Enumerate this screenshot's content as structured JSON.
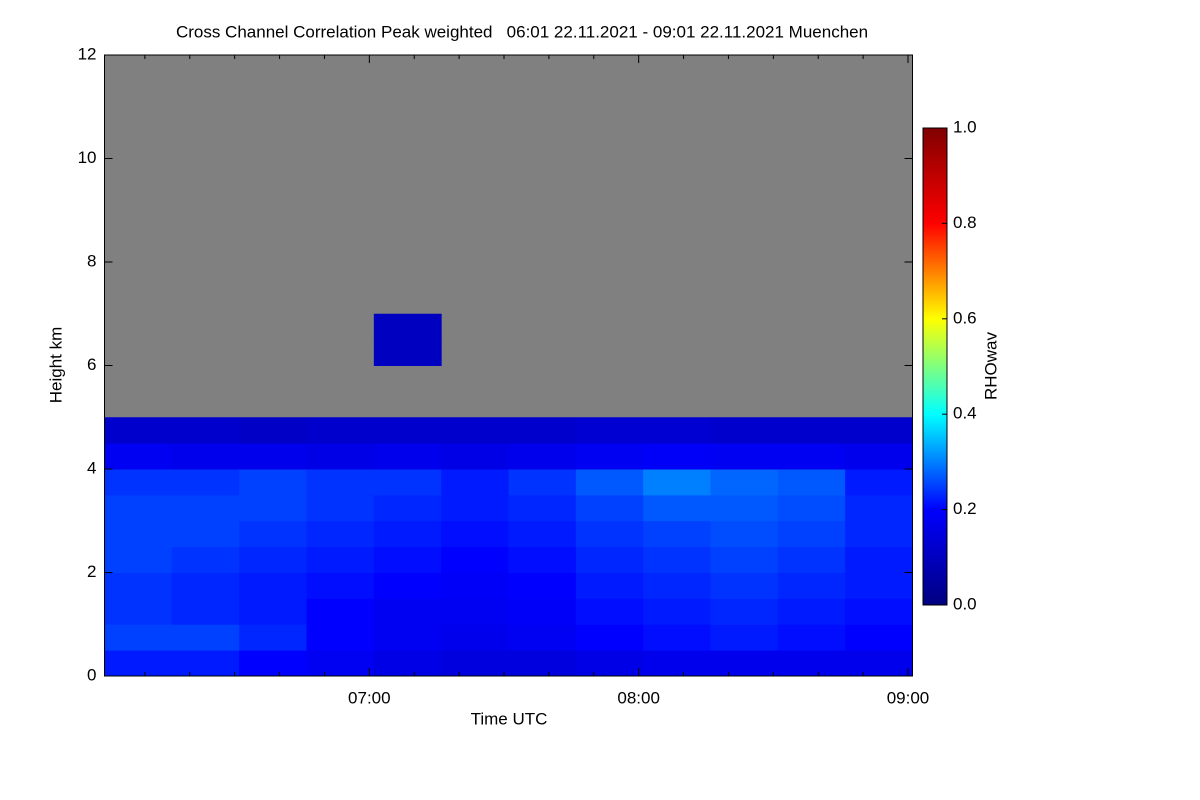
{
  "chart_data": {
    "type": "heatmap",
    "title": "Cross Channel Correlation Peak weighted   06:01 22.11.2021 - 09:01 22.11.2021 Muenchen",
    "x_label": "Time UTC",
    "y_label": "Height km",
    "colorbar_label": "RHOwav",
    "xlim": [
      6.0167,
      9.0167
    ],
    "xticks": [
      {
        "value": 7,
        "label": "07:00"
      },
      {
        "value": 8,
        "label": "08:00"
      },
      {
        "value": 9,
        "label": "09:00"
      }
    ],
    "xminorticks": [
      6.1667,
      6.3333,
      6.5,
      6.6667,
      6.8333,
      7.1667,
      7.3333,
      7.5,
      7.6667,
      7.8333,
      8.1667,
      8.3333,
      8.5,
      8.6667,
      8.8333
    ],
    "ylim": [
      0,
      12
    ],
    "yticks": [
      0,
      2,
      4,
      6,
      8,
      10,
      12
    ],
    "x_edges": [
      6.0167,
      6.2667,
      6.5167,
      6.7667,
      7.0167,
      7.2667,
      7.5167,
      7.7667,
      8.0167,
      8.2667,
      8.5167,
      8.7667,
      9.0167
    ],
    "y_edges": [
      0,
      0.5,
      1,
      1.5,
      2,
      2.5,
      3,
      3.5,
      4,
      4.5,
      5,
      5.5,
      6,
      6.5,
      7
    ],
    "z": [
      [
        0.22,
        0.22,
        0.2,
        0.18,
        0.16,
        0.15,
        0.15,
        0.16,
        0.17,
        0.17,
        0.17,
        0.17
      ],
      [
        0.25,
        0.25,
        0.23,
        0.2,
        0.18,
        0.17,
        0.18,
        0.2,
        0.21,
        0.22,
        0.21,
        0.2
      ],
      [
        0.24,
        0.23,
        0.22,
        0.2,
        0.18,
        0.18,
        0.19,
        0.21,
        0.22,
        0.23,
        0.22,
        0.21
      ],
      [
        0.24,
        0.23,
        0.22,
        0.21,
        0.2,
        0.19,
        0.2,
        0.22,
        0.23,
        0.24,
        0.23,
        0.22
      ],
      [
        0.25,
        0.24,
        0.23,
        0.22,
        0.21,
        0.2,
        0.21,
        0.23,
        0.24,
        0.25,
        0.24,
        0.22
      ],
      [
        0.25,
        0.25,
        0.24,
        0.23,
        0.22,
        0.21,
        0.22,
        0.24,
        0.25,
        0.26,
        0.25,
        0.23
      ],
      [
        0.25,
        0.25,
        0.25,
        0.24,
        0.23,
        0.22,
        0.23,
        0.25,
        0.27,
        0.27,
        0.26,
        0.23
      ],
      [
        0.24,
        0.24,
        0.25,
        0.24,
        0.24,
        0.22,
        0.24,
        0.27,
        0.3,
        0.28,
        0.27,
        0.22
      ],
      [
        0.18,
        0.17,
        0.17,
        0.16,
        0.17,
        0.16,
        0.17,
        0.18,
        0.19,
        0.18,
        0.18,
        0.17
      ],
      [
        0.12,
        0.12,
        0.11,
        0.12,
        0.12,
        0.12,
        0.12,
        0.13,
        0.13,
        0.12,
        0.12,
        0.12
      ],
      [
        null,
        null,
        null,
        null,
        null,
        null,
        null,
        null,
        null,
        null,
        null,
        null
      ],
      [
        null,
        null,
        null,
        null,
        null,
        null,
        null,
        null,
        null,
        null,
        null,
        null
      ],
      [
        null,
        null,
        null,
        null,
        0.1,
        null,
        null,
        null,
        null,
        null,
        null,
        null
      ],
      [
        null,
        null,
        null,
        null,
        0.1,
        null,
        null,
        null,
        null,
        null,
        null,
        null
      ]
    ],
    "missing_color": "#808080",
    "colormap": [
      "#000080",
      "#0000ff",
      "#00ffff",
      "#ffff00",
      "#ff0000",
      "#800000"
    ],
    "clim": [
      0,
      1
    ],
    "cticks": [
      {
        "value": 0,
        "label": "0.0"
      },
      {
        "value": 0.2,
        "label": "0.2"
      },
      {
        "value": 0.4,
        "label": "0.4"
      },
      {
        "value": 0.6,
        "label": "0.6"
      },
      {
        "value": 0.8,
        "label": "0.8"
      },
      {
        "value": 1,
        "label": "1.0"
      }
    ]
  }
}
